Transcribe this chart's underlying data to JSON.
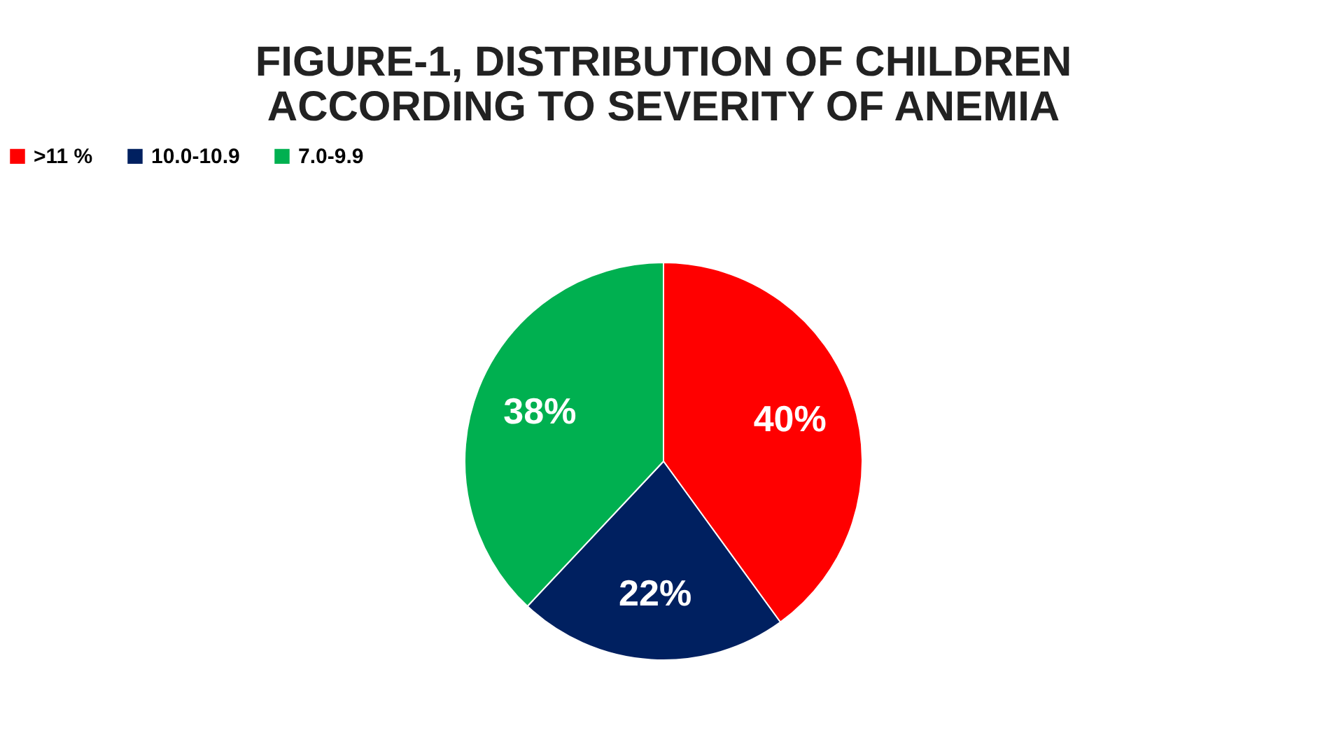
{
  "chart_data": {
    "type": "pie",
    "title": "FIGURE-1, DISTRIBUTION OF CHILDREN\nACCORDING TO SEVERITY OF ANEMIA",
    "categories": [
      ">11 %",
      "10.0-10.9",
      "7.0-9.9"
    ],
    "values": [
      40,
      22,
      38
    ],
    "colors": [
      "#ff0000",
      "#002060",
      "#00b050"
    ],
    "value_labels": [
      "40%",
      "22%",
      "38%"
    ],
    "legend": "top"
  }
}
